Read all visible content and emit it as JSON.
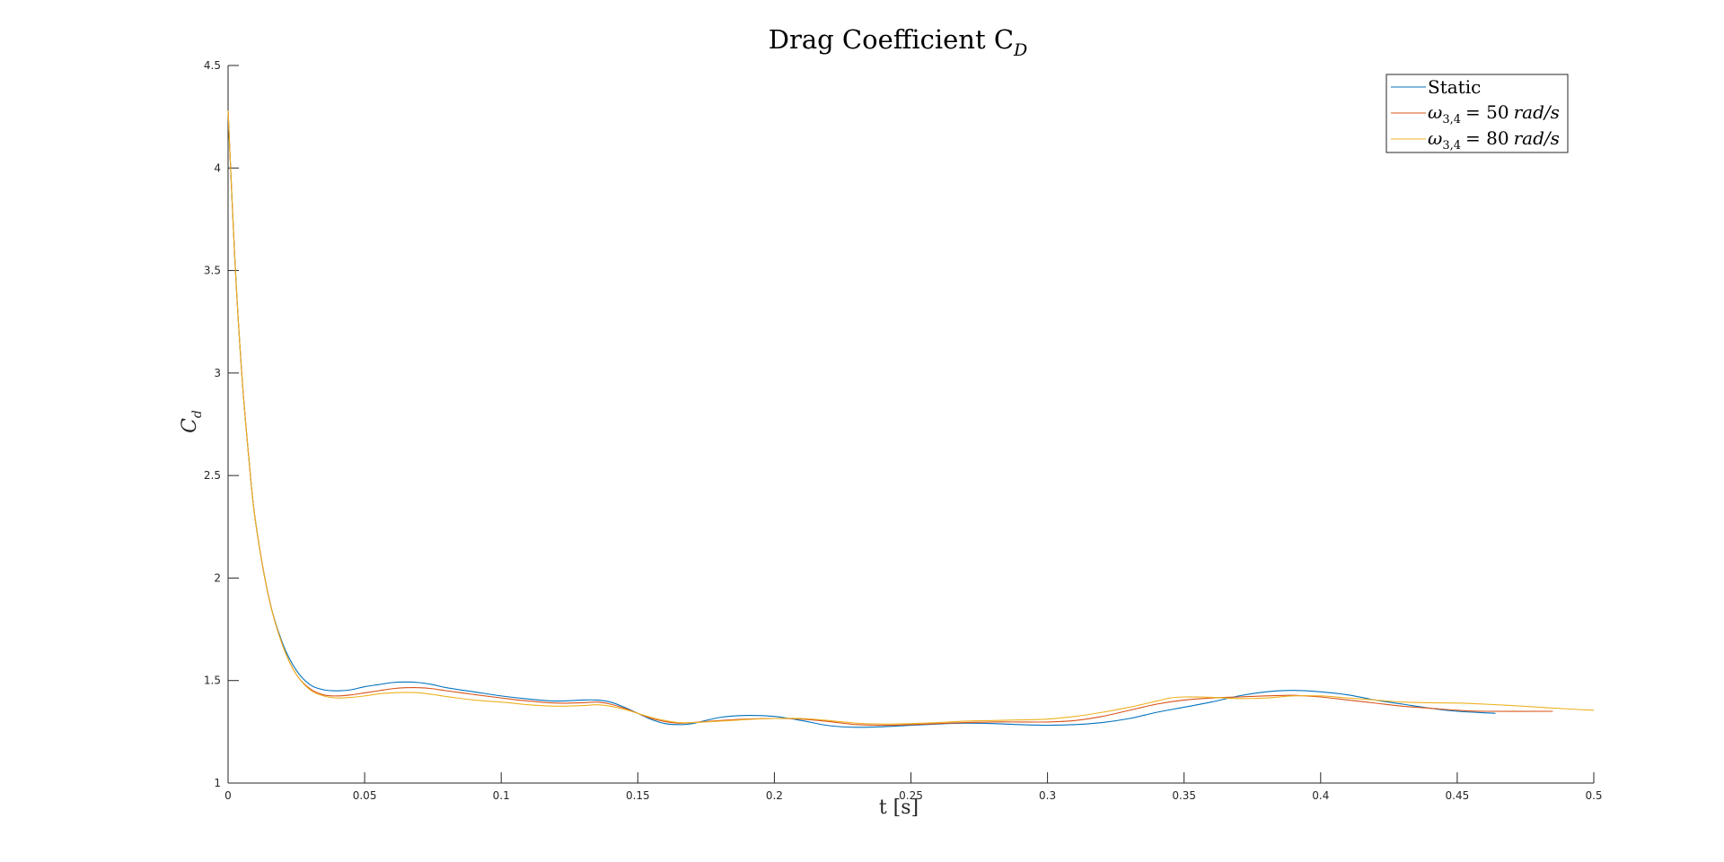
{
  "chart_data": {
    "type": "line",
    "title": "Drag Coefficient C",
    "title_subscript": "D",
    "xlabel": "t [s]",
    "ylabel": "C",
    "ylabel_subscript": "d",
    "xlim": [
      0,
      0.5
    ],
    "ylim": [
      1,
      4.5
    ],
    "x_ticks": [
      0,
      0.05,
      0.1,
      0.15,
      0.2,
      0.25,
      0.3,
      0.35,
      0.4,
      0.45,
      0.5
    ],
    "y_ticks": [
      1,
      1.5,
      2,
      2.5,
      3,
      3.5,
      4,
      4.5
    ],
    "x_tick_labels": [
      "0",
      "0.05",
      "0.1",
      "0.15",
      "0.2",
      "0.25",
      "0.3",
      "0.35",
      "0.4",
      "0.45",
      "0.5"
    ],
    "y_tick_labels": [
      "1",
      "1.5",
      "2",
      "2.5",
      "3",
      "3.5",
      "4",
      "4.5"
    ],
    "grid": false,
    "legend_position": "top-right",
    "series": [
      {
        "name": "Static",
        "color": "#0072BD",
        "x": [
          0,
          0.0025,
          0.005,
          0.0075,
          0.01,
          0.015,
          0.02,
          0.025,
          0.03,
          0.035,
          0.04,
          0.045,
          0.05,
          0.055,
          0.06,
          0.065,
          0.07,
          0.075,
          0.08,
          0.09,
          0.1,
          0.11,
          0.12,
          0.13,
          0.135,
          0.14,
          0.145,
          0.15,
          0.155,
          0.16,
          0.165,
          0.17,
          0.18,
          0.19,
          0.2,
          0.21,
          0.22,
          0.23,
          0.24,
          0.25,
          0.26,
          0.27,
          0.28,
          0.29,
          0.3,
          0.31,
          0.32,
          0.33,
          0.34,
          0.35,
          0.36,
          0.37,
          0.38,
          0.39,
          0.4,
          0.41,
          0.42,
          0.43,
          0.44,
          0.45,
          0.464
        ],
        "y": [
          4.28,
          3.55,
          3.0,
          2.6,
          2.28,
          1.9,
          1.68,
          1.55,
          1.48,
          1.455,
          1.45,
          1.455,
          1.47,
          1.48,
          1.49,
          1.493,
          1.49,
          1.48,
          1.465,
          1.445,
          1.425,
          1.41,
          1.4,
          1.405,
          1.405,
          1.395,
          1.37,
          1.34,
          1.31,
          1.29,
          1.285,
          1.29,
          1.32,
          1.33,
          1.325,
          1.305,
          1.28,
          1.272,
          1.275,
          1.282,
          1.288,
          1.292,
          1.29,
          1.285,
          1.282,
          1.285,
          1.295,
          1.315,
          1.345,
          1.37,
          1.395,
          1.425,
          1.445,
          1.452,
          1.445,
          1.43,
          1.405,
          1.385,
          1.365,
          1.35,
          1.34
        ]
      },
      {
        "name": "ω3,4 = 50 rad/s",
        "color": "#D95319",
        "x": [
          0,
          0.0025,
          0.005,
          0.0075,
          0.01,
          0.015,
          0.02,
          0.025,
          0.03,
          0.035,
          0.04,
          0.045,
          0.05,
          0.055,
          0.06,
          0.065,
          0.07,
          0.075,
          0.08,
          0.09,
          0.1,
          0.11,
          0.12,
          0.13,
          0.135,
          0.14,
          0.145,
          0.15,
          0.155,
          0.16,
          0.165,
          0.17,
          0.18,
          0.19,
          0.2,
          0.21,
          0.22,
          0.23,
          0.24,
          0.25,
          0.26,
          0.27,
          0.28,
          0.29,
          0.3,
          0.31,
          0.32,
          0.33,
          0.34,
          0.35,
          0.36,
          0.37,
          0.38,
          0.39,
          0.4,
          0.41,
          0.42,
          0.43,
          0.44,
          0.45,
          0.46,
          0.485
        ],
        "y": [
          4.28,
          3.55,
          3.0,
          2.6,
          2.28,
          1.9,
          1.67,
          1.53,
          1.46,
          1.43,
          1.425,
          1.43,
          1.44,
          1.45,
          1.46,
          1.465,
          1.465,
          1.46,
          1.45,
          1.432,
          1.415,
          1.4,
          1.39,
          1.392,
          1.395,
          1.385,
          1.365,
          1.34,
          1.315,
          1.3,
          1.292,
          1.295,
          1.305,
          1.312,
          1.315,
          1.312,
          1.3,
          1.285,
          1.282,
          1.285,
          1.29,
          1.295,
          1.298,
          1.298,
          1.298,
          1.305,
          1.325,
          1.355,
          1.385,
          1.405,
          1.415,
          1.42,
          1.425,
          1.428,
          1.42,
          1.405,
          1.39,
          1.375,
          1.365,
          1.355,
          1.35,
          1.35
        ]
      },
      {
        "name": "ω3,4 = 80 rad/s",
        "color": "#EDB120",
        "x": [
          0,
          0.0025,
          0.005,
          0.0075,
          0.01,
          0.015,
          0.02,
          0.025,
          0.03,
          0.035,
          0.04,
          0.045,
          0.05,
          0.055,
          0.06,
          0.065,
          0.07,
          0.075,
          0.08,
          0.09,
          0.1,
          0.11,
          0.12,
          0.13,
          0.135,
          0.14,
          0.145,
          0.15,
          0.155,
          0.16,
          0.165,
          0.17,
          0.18,
          0.19,
          0.2,
          0.21,
          0.22,
          0.23,
          0.24,
          0.25,
          0.26,
          0.27,
          0.28,
          0.29,
          0.3,
          0.31,
          0.32,
          0.33,
          0.34,
          0.345,
          0.35,
          0.36,
          0.37,
          0.38,
          0.39,
          0.4,
          0.41,
          0.42,
          0.43,
          0.44,
          0.45,
          0.46,
          0.47,
          0.48,
          0.49,
          0.5
        ],
        "y": [
          4.28,
          3.55,
          3.0,
          2.6,
          2.28,
          1.9,
          1.67,
          1.53,
          1.455,
          1.425,
          1.415,
          1.418,
          1.425,
          1.435,
          1.44,
          1.442,
          1.44,
          1.432,
          1.422,
          1.405,
          1.395,
          1.382,
          1.375,
          1.378,
          1.382,
          1.375,
          1.36,
          1.34,
          1.32,
          1.305,
          1.295,
          1.295,
          1.302,
          1.31,
          1.315,
          1.315,
          1.305,
          1.292,
          1.288,
          1.29,
          1.295,
          1.302,
          1.305,
          1.308,
          1.312,
          1.325,
          1.345,
          1.37,
          1.4,
          1.415,
          1.42,
          1.418,
          1.412,
          1.415,
          1.425,
          1.425,
          1.415,
          1.405,
          1.395,
          1.392,
          1.39,
          1.385,
          1.378,
          1.37,
          1.362,
          1.355
        ]
      }
    ]
  },
  "legend": {
    "static_label": "Static",
    "omega_symbol": "ω",
    "omega_subscript": "3,4",
    "omega50_rest": "= 50",
    "omega80_rest": "= 80",
    "unit": "rad/s"
  }
}
